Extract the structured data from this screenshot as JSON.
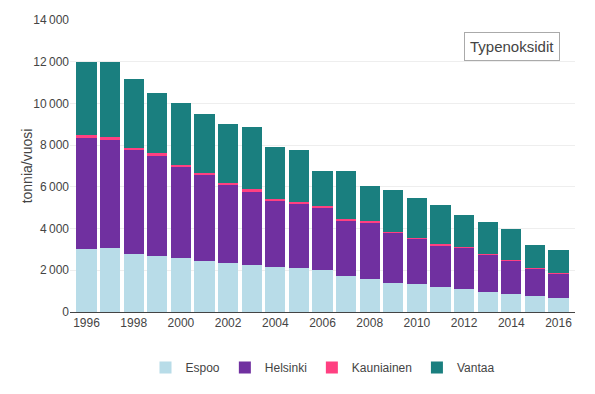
{
  "chart_data": {
    "type": "bar",
    "title": "Typenoksidit",
    "ylabel": "tonnia/vuosi",
    "stacked": true,
    "grid": true,
    "legend": "bottom",
    "x": [
      1996,
      1997,
      1998,
      1999,
      2000,
      2001,
      2002,
      2003,
      2004,
      2005,
      2006,
      2007,
      2008,
      2009,
      2010,
      2011,
      2012,
      2013,
      2014,
      2015,
      2016
    ],
    "xlim": [
      1995.3,
      2016.7
    ],
    "xticks": [
      1996,
      1998,
      2000,
      2002,
      2004,
      2006,
      2008,
      2010,
      2012,
      2014,
      2016
    ],
    "ylim": [
      0,
      14000
    ],
    "yticks": [
      0,
      {
        "value": 2000,
        "label": "2 000"
      },
      {
        "value": 4000,
        "label": "4 000"
      },
      {
        "value": 6000,
        "label": "6 000"
      },
      {
        "value": 8000,
        "label": "8 000"
      },
      {
        "value": 10000,
        "label": "10 000"
      },
      {
        "value": 12000,
        "label": "12 000"
      },
      {
        "value": 14000,
        "label": "14 000"
      }
    ],
    "series": [
      {
        "name": "Espoo",
        "color": "#b8dce8",
        "values": [
          3000,
          3050,
          2800,
          2700,
          2600,
          2450,
          2350,
          2250,
          2150,
          2100,
          2000,
          1750,
          1600,
          1400,
          1350,
          1200,
          1100,
          950,
          850,
          750,
          650
        ]
      },
      {
        "name": "Helsinki",
        "color": "#7030a0",
        "values": [
          5350,
          5200,
          4950,
          4800,
          4350,
          4100,
          3750,
          3550,
          3200,
          3100,
          3000,
          2650,
          2700,
          2400,
          2150,
          2000,
          2000,
          1800,
          1600,
          1350,
          1200
        ]
      },
      {
        "name": "Kauniainen",
        "color": "#ff4081",
        "values": [
          150,
          130,
          120,
          100,
          100,
          100,
          100,
          80,
          80,
          70,
          70,
          60,
          60,
          50,
          50,
          40,
          40,
          30,
          30,
          20,
          20
        ]
      },
      {
        "name": "Vantaa",
        "color": "#1a7f7f",
        "values": [
          3500,
          3600,
          3300,
          2900,
          2950,
          2850,
          2800,
          3000,
          2500,
          2500,
          1700,
          2300,
          1700,
          2000,
          1900,
          1900,
          1500,
          1550,
          1500,
          1100,
          1100
        ]
      }
    ]
  }
}
